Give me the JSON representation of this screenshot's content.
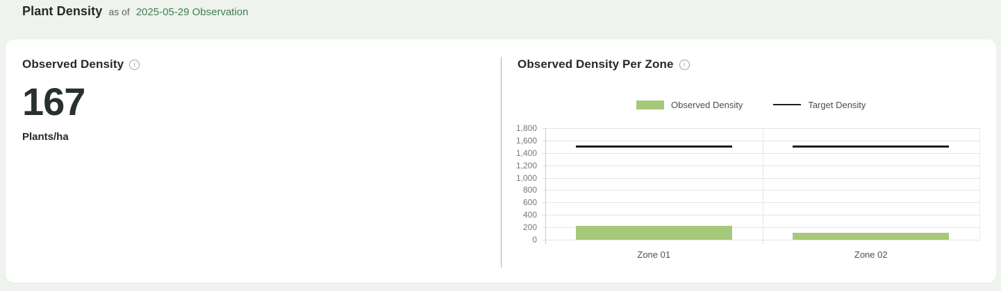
{
  "header": {
    "title": "Plant Density",
    "as_of_prefix": "as of",
    "observation_link": "2025-05-29 Observation"
  },
  "observed": {
    "title": "Observed Density",
    "value": "167",
    "unit": "Plants/ha"
  },
  "per_zone": {
    "title": "Observed Density Per Zone"
  },
  "icons": {
    "info": "i"
  },
  "colors": {
    "page_background": "#eff3ee",
    "card_background": "#ffffff",
    "link_green": "#3e7e54",
    "bar_green": "#a6c87a",
    "target_black": "#1a1a1a",
    "divider_tan": "#b3ada0",
    "info_icon_tan": "#a89f88",
    "axis_text_gray": "#767676"
  },
  "chart_data": {
    "type": "bar",
    "title": "Observed Density Per Zone",
    "categories": [
      "Zone 01",
      "Zone 02"
    ],
    "series": [
      {
        "name": "Observed Density",
        "type": "bar",
        "color": "#a6c87a",
        "values": [
          223,
          111
        ]
      },
      {
        "name": "Target Density",
        "type": "line",
        "color": "#1a1a1a",
        "values": [
          1500,
          1500
        ]
      }
    ],
    "xlabel": "",
    "ylabel": "",
    "ylim": [
      0,
      1800
    ],
    "ytick_step": 200,
    "ytick_labels": [
      "0",
      "200",
      "400",
      "600",
      "800",
      "1,000",
      "1,200",
      "1,400",
      "1,600",
      "1,800"
    ],
    "grid": true,
    "legend_position": "top"
  }
}
